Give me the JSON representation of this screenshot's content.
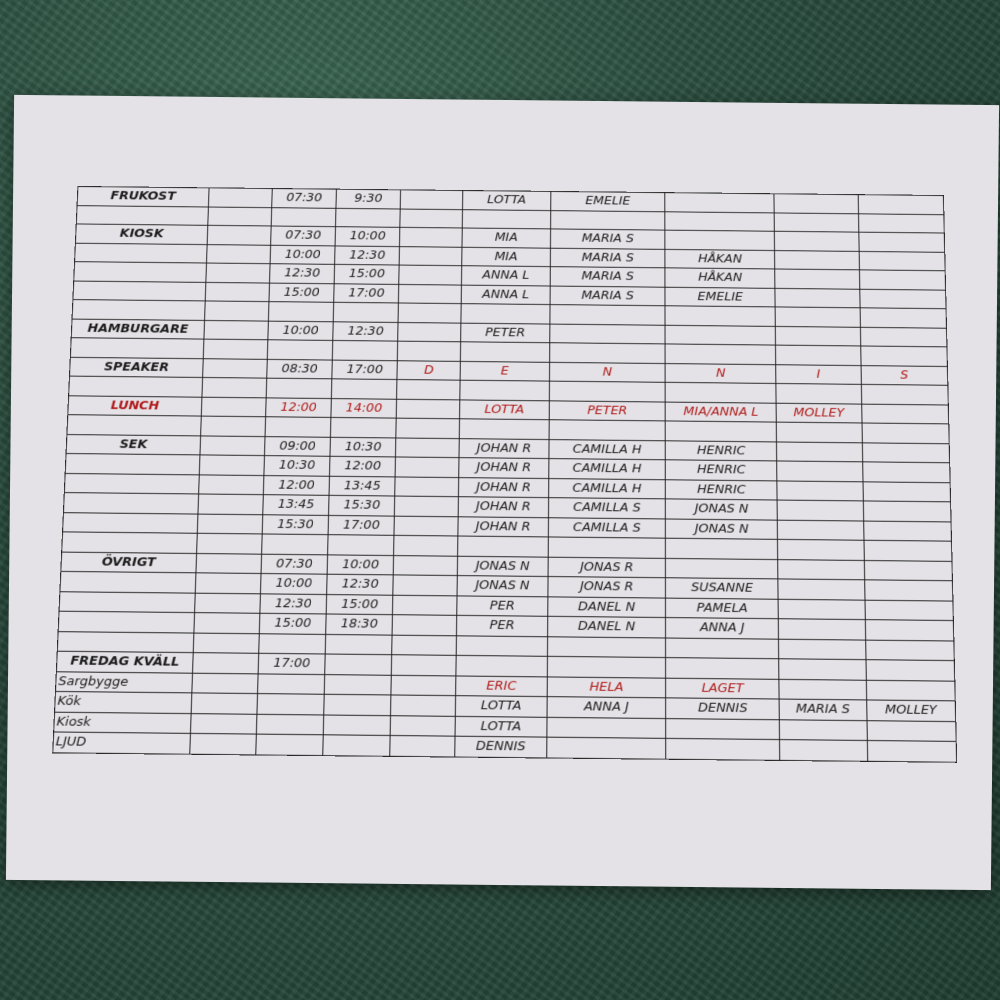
{
  "colors": {
    "ink": "#1a1a1a",
    "accent_red": "#b01818",
    "paper": "#e4e2e6",
    "background": "#2b4f40"
  },
  "rows": [
    {
      "cells": [
        "FRUKOST",
        "",
        "07:30",
        "9:30",
        "",
        "LOTTA",
        "EMELIE",
        "",
        "",
        ""
      ]
    },
    {
      "cells": [
        "",
        "",
        "",
        "",
        "",
        "",
        "",
        "",
        "",
        ""
      ]
    },
    {
      "cells": [
        "KIOSK",
        "",
        "07:30",
        "10:00",
        "",
        "MIA",
        "MARIA S",
        "",
        "",
        ""
      ]
    },
    {
      "cells": [
        "",
        "",
        "10:00",
        "12:30",
        "",
        "MIA",
        "MARIA S",
        "HÅKAN",
        "",
        ""
      ]
    },
    {
      "cells": [
        "",
        "",
        "12:30",
        "15:00",
        "",
        "ANNA L",
        "MARIA S",
        "HÅKAN",
        "",
        ""
      ]
    },
    {
      "cells": [
        "",
        "",
        "15:00",
        "17:00",
        "",
        "ANNA L",
        "MARIA S",
        "EMELIE",
        "",
        ""
      ]
    },
    {
      "cells": [
        "",
        "",
        "",
        "",
        "",
        "",
        "",
        "",
        "",
        ""
      ]
    },
    {
      "cells": [
        "HAMBURGARE",
        "",
        "10:00",
        "12:30",
        "",
        "PETER",
        "",
        "",
        "",
        ""
      ]
    },
    {
      "cells": [
        "",
        "",
        "",
        "",
        "",
        "",
        "",
        "",
        "",
        ""
      ]
    },
    {
      "cells": [
        "SPEAKER",
        "",
        "08:30",
        "17:00",
        "D",
        "E",
        "N",
        "N",
        "I",
        "S"
      ],
      "red_from": 4
    },
    {
      "cells": [
        "",
        "",
        "",
        "",
        "",
        "",
        "",
        "",
        "",
        ""
      ]
    },
    {
      "cells": [
        "LUNCH",
        "",
        "12:00",
        "14:00",
        "",
        "LOTTA",
        "PETER",
        "MIA/ANNA L",
        "MOLLEY",
        ""
      ],
      "red": true
    },
    {
      "cells": [
        "",
        "",
        "",
        "",
        "",
        "",
        "",
        "",
        "",
        ""
      ]
    },
    {
      "cells": [
        "SEK",
        "",
        "09:00",
        "10:30",
        "",
        "JOHAN R",
        "CAMILLA H",
        "HENRIC",
        "",
        ""
      ]
    },
    {
      "cells": [
        "",
        "",
        "10:30",
        "12:00",
        "",
        "JOHAN R",
        "CAMILLA H",
        "HENRIC",
        "",
        ""
      ]
    },
    {
      "cells": [
        "",
        "",
        "12:00",
        "13:45",
        "",
        "JOHAN R",
        "CAMILLA H",
        "HENRIC",
        "",
        ""
      ]
    },
    {
      "cells": [
        "",
        "",
        "13:45",
        "15:30",
        "",
        "JOHAN R",
        "CAMILLA S",
        "JONAS N",
        "",
        ""
      ]
    },
    {
      "cells": [
        "",
        "",
        "15:30",
        "17:00",
        "",
        "JOHAN R",
        "CAMILLA S",
        "JONAS N",
        "",
        ""
      ]
    },
    {
      "cells": [
        "",
        "",
        "",
        "",
        "",
        "",
        "",
        "",
        "",
        ""
      ]
    },
    {
      "cells": [
        "ÖVRIGT",
        "",
        "07:30",
        "10:00",
        "",
        "JONAS N",
        "JONAS R",
        "",
        "",
        ""
      ]
    },
    {
      "cells": [
        "",
        "",
        "10:00",
        "12:30",
        "",
        "JONAS N",
        "JONAS R",
        "SUSANNE",
        "",
        ""
      ]
    },
    {
      "cells": [
        "",
        "",
        "12:30",
        "15:00",
        "",
        "PER",
        "DANEL N",
        "PAMELA",
        "",
        ""
      ]
    },
    {
      "cells": [
        "",
        "",
        "15:00",
        "18:30",
        "",
        "PER",
        "DANEL N",
        "ANNA J",
        "",
        ""
      ]
    },
    {
      "cells": [
        "",
        "",
        "",
        "",
        "",
        "",
        "",
        "",
        "",
        ""
      ]
    },
    {
      "cells": [
        "FREDAG KVÄLL",
        "",
        "17:00",
        "",
        "",
        "",
        "",
        "",
        "",
        ""
      ]
    },
    {
      "cells": [
        "Sargbygge",
        "",
        "",
        "",
        "",
        "ERIC",
        "HELA",
        "LAGET",
        "",
        ""
      ],
      "red_from": 5,
      "small": true
    },
    {
      "cells": [
        "Kök",
        "",
        "",
        "",
        "",
        "LOTTA",
        "ANNA J",
        "DENNIS",
        "MARIA S",
        "MOLLEY"
      ],
      "small": true
    },
    {
      "cells": [
        "Kiosk",
        "",
        "",
        "",
        "",
        "LOTTA",
        "",
        "",
        "",
        ""
      ],
      "small": true
    },
    {
      "cells": [
        "LJUD",
        "",
        "",
        "",
        "",
        "DENNIS",
        "",
        "",
        "",
        ""
      ],
      "small": true
    }
  ]
}
